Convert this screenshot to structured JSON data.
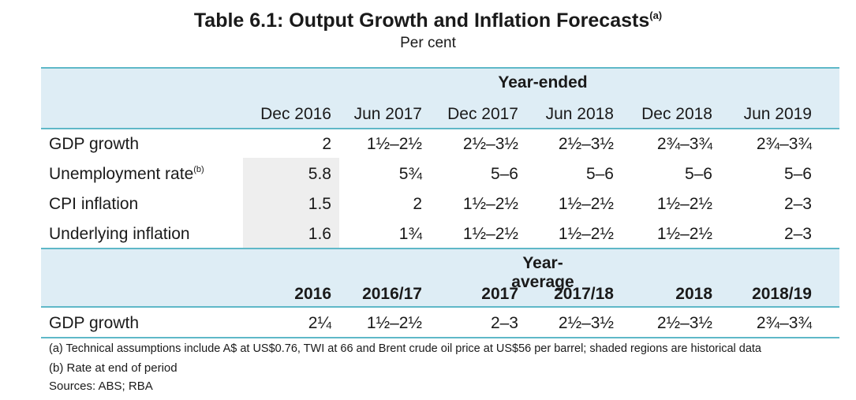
{
  "title": "Table 6.1: Output Growth and Inflation Forecasts",
  "title_note_marker": "(a)",
  "subtitle": "Per cent",
  "year_ended": {
    "group_label": "Year-ended",
    "columns": [
      "Dec 2016",
      "Jun 2017",
      "Dec 2017",
      "Jun 2018",
      "Dec 2018",
      "Jun 2019"
    ],
    "rows": [
      {
        "label": "GDP growth",
        "note": "",
        "values": [
          "2",
          "1½–2½",
          "2½–3½",
          "2½–3½",
          "2¾–3¾",
          "2¾–3¾"
        ]
      },
      {
        "label": "Unemployment rate",
        "note": "(b)",
        "values": [
          "5.8",
          "5¾",
          "5–6",
          "5–6",
          "5–6",
          "5–6"
        ]
      },
      {
        "label": "CPI inflation",
        "note": "",
        "values": [
          "1.5",
          "2",
          "1½–2½",
          "1½–2½",
          "1½–2½",
          "2–3"
        ]
      },
      {
        "label": "Underlying inflation",
        "note": "",
        "values": [
          "1.6",
          "1¾",
          "1½–2½",
          "1½–2½",
          "1½–2½",
          "2–3"
        ]
      }
    ]
  },
  "year_average": {
    "group_label": "Year-average",
    "columns": [
      "2016",
      "2016/17",
      "2017",
      "2017/18",
      "2018",
      "2018/19"
    ],
    "rows": [
      {
        "label": "GDP growth",
        "values": [
          "2¼",
          "1½–2½",
          "2–3",
          "2½–3½",
          "2½–3½",
          "2¾–3¾"
        ]
      }
    ]
  },
  "footnotes": [
    "(a) Technical assumptions include A$ at US$0.76, TWI at 66 and Brent crude oil price at US$56 per barrel; shaded regions are historical data",
    "(b) Rate at end of period",
    "Sources: ABS; RBA"
  ],
  "colors": {
    "header_band": "#deedf5",
    "rule": "#5fb8c8",
    "historical_shade": "#eeeeee"
  }
}
